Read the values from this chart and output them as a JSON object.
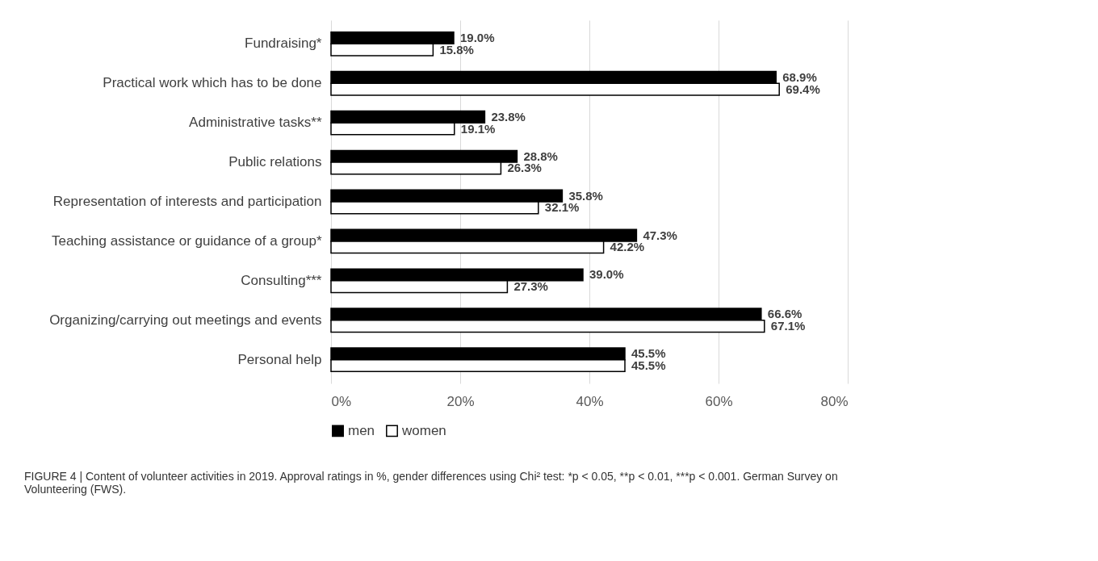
{
  "chart_data": {
    "type": "bar",
    "orientation": "horizontal",
    "categories": [
      "Fundraising*",
      "Practical work which has to be done",
      "Administrative tasks**",
      "Public relations",
      "Representation of interests and participation",
      "Teaching assistance or guidance of a group*",
      "Consulting***",
      "Organizing/carrying out meetings and events",
      "Personal help"
    ],
    "series": [
      {
        "name": "men",
        "color": "#000000",
        "values": [
          19.0,
          68.9,
          23.8,
          28.8,
          35.8,
          47.3,
          39.0,
          66.6,
          45.5
        ],
        "value_labels": [
          "19.0%",
          "68.9%",
          "23.8%",
          "28.8%",
          "35.8%",
          "47.3%",
          "39.0%",
          "66.6%",
          "45.5%"
        ]
      },
      {
        "name": "women",
        "color": "#ffffff",
        "values": [
          15.8,
          69.4,
          19.1,
          26.3,
          32.1,
          42.2,
          27.3,
          67.1,
          45.5
        ],
        "value_labels": [
          "15.8%",
          "69.4%",
          "19.1%",
          "26.3%",
          "32.1%",
          "42.2%",
          "27.3%",
          "67.1%",
          "45.5%"
        ]
      }
    ],
    "xlim": [
      0,
      80
    ],
    "xticks": [
      {
        "value": 0,
        "label": "0%"
      },
      {
        "value": 20,
        "label": "20%"
      },
      {
        "value": 40,
        "label": "40%"
      },
      {
        "value": 60,
        "label": "60%"
      },
      {
        "value": 80,
        "label": "80%"
      }
    ],
    "grid": "x",
    "legend": "bottom",
    "annotations": [
      "FIGURE 4 | Content of volunteer activities in 2019. Approval ratings in %, gender differences using Chi² test: *p < 0.05, **p < 0.01, ***p < 0.001. German Survey on Volunteering (FWS)."
    ]
  }
}
